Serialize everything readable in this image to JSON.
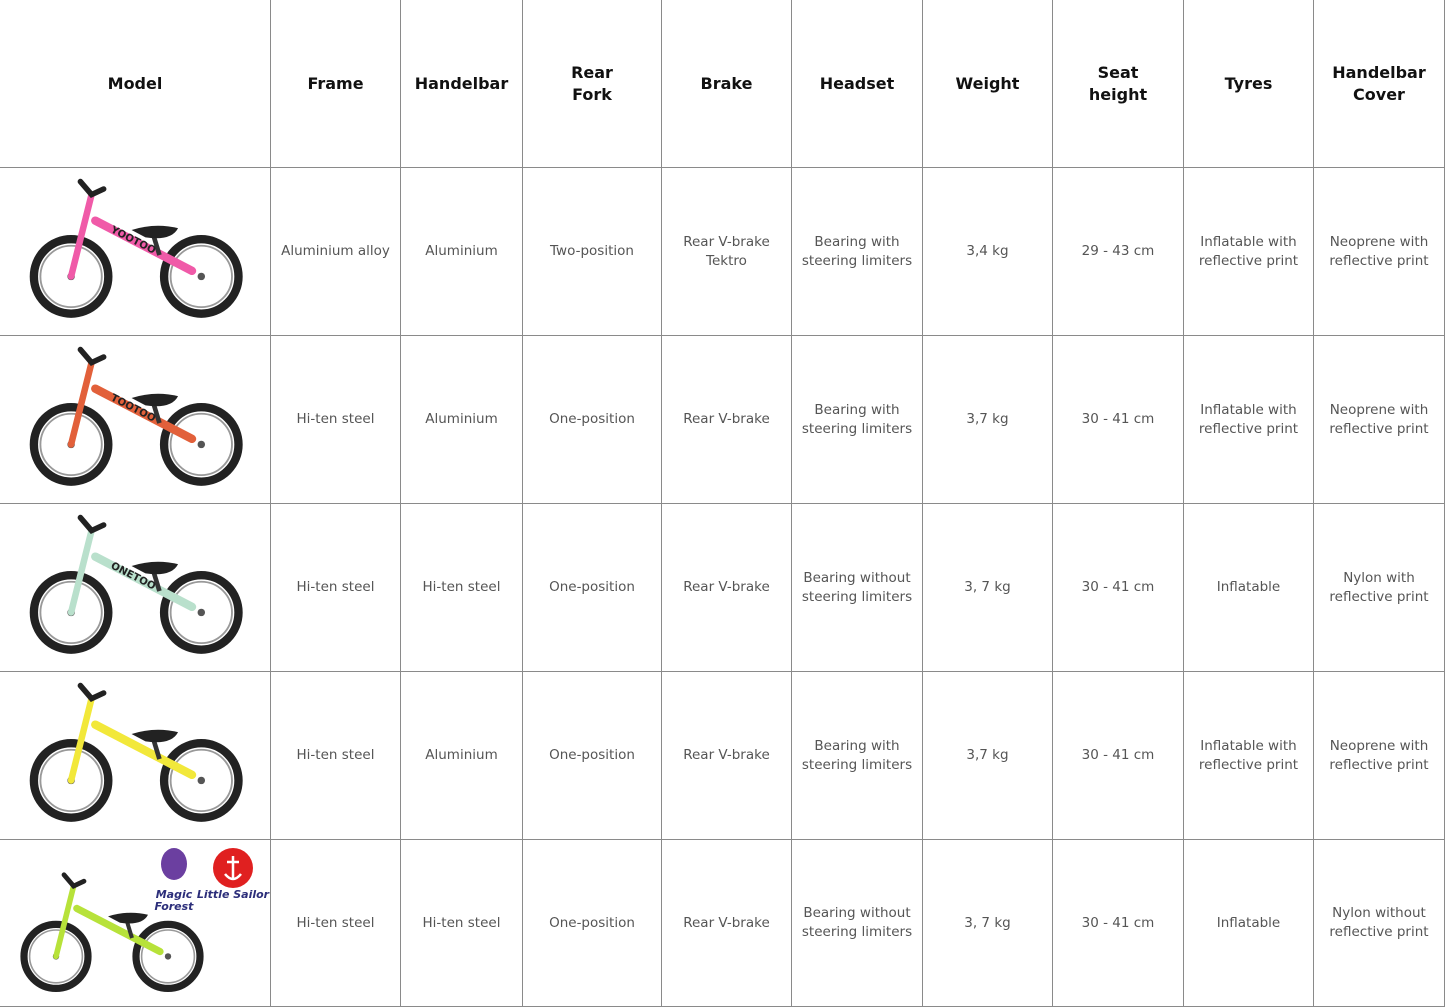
{
  "header": {
    "columns": [
      "Model",
      "Frame",
      "Handelbar",
      "Rear\nFork",
      "Brake",
      "Headset",
      "Weight",
      "Seat\nheight",
      "Tyres",
      "Handelbar\nCover"
    ]
  },
  "rows": [
    {
      "bike_label": "YOOTOO",
      "cells": [
        "Aluminium alloy",
        "Aluminium",
        "Two-position",
        "Rear V-brake\nTektro",
        "Bearing with\nsteering limiters",
        "3,4 kg",
        "29 - 43 cm",
        "Inflatable with\nreflective print",
        "Neoprene with\nreflective print"
      ]
    },
    {
      "bike_label": "TOOTOO",
      "cells": [
        "Hi-ten steel",
        "Aluminium",
        "One-position",
        "Rear V-brake",
        "Bearing with\nsteering limiters",
        "3,7 kg",
        "30 - 41 cm",
        "Inflatable with\nreflective print",
        "Neoprene with\nreflective print"
      ]
    },
    {
      "bike_label": "ONETOO",
      "cells": [
        "Hi-ten steel",
        "Hi-ten steel",
        "One-position",
        "Rear V-brake",
        "Bearing without\nsteering limiters",
        "3, 7 kg",
        "30 - 41 cm",
        "Inflatable",
        "Nylon with\nreflective print"
      ]
    },
    {
      "cells": [
        "Hi-ten steel",
        "Aluminium",
        "One-position",
        "Rear V-brake",
        "Bearing with\nsteering limiters",
        "3,7 kg",
        "30 - 41 cm",
        "Inflatable with\nreflective print",
        "Neoprene with\nreflective print"
      ]
    },
    {
      "logos": [
        "Magic\nForest",
        "Little Sailor"
      ],
      "cells": [
        "Hi-ten steel",
        "Hi-ten steel",
        "One-position",
        "Rear V-brake",
        "Bearing without\nsteering limiters",
        "3, 7 kg",
        "30 - 41 cm",
        "Inflatable",
        "Nylon without\nreflective print"
      ]
    }
  ]
}
